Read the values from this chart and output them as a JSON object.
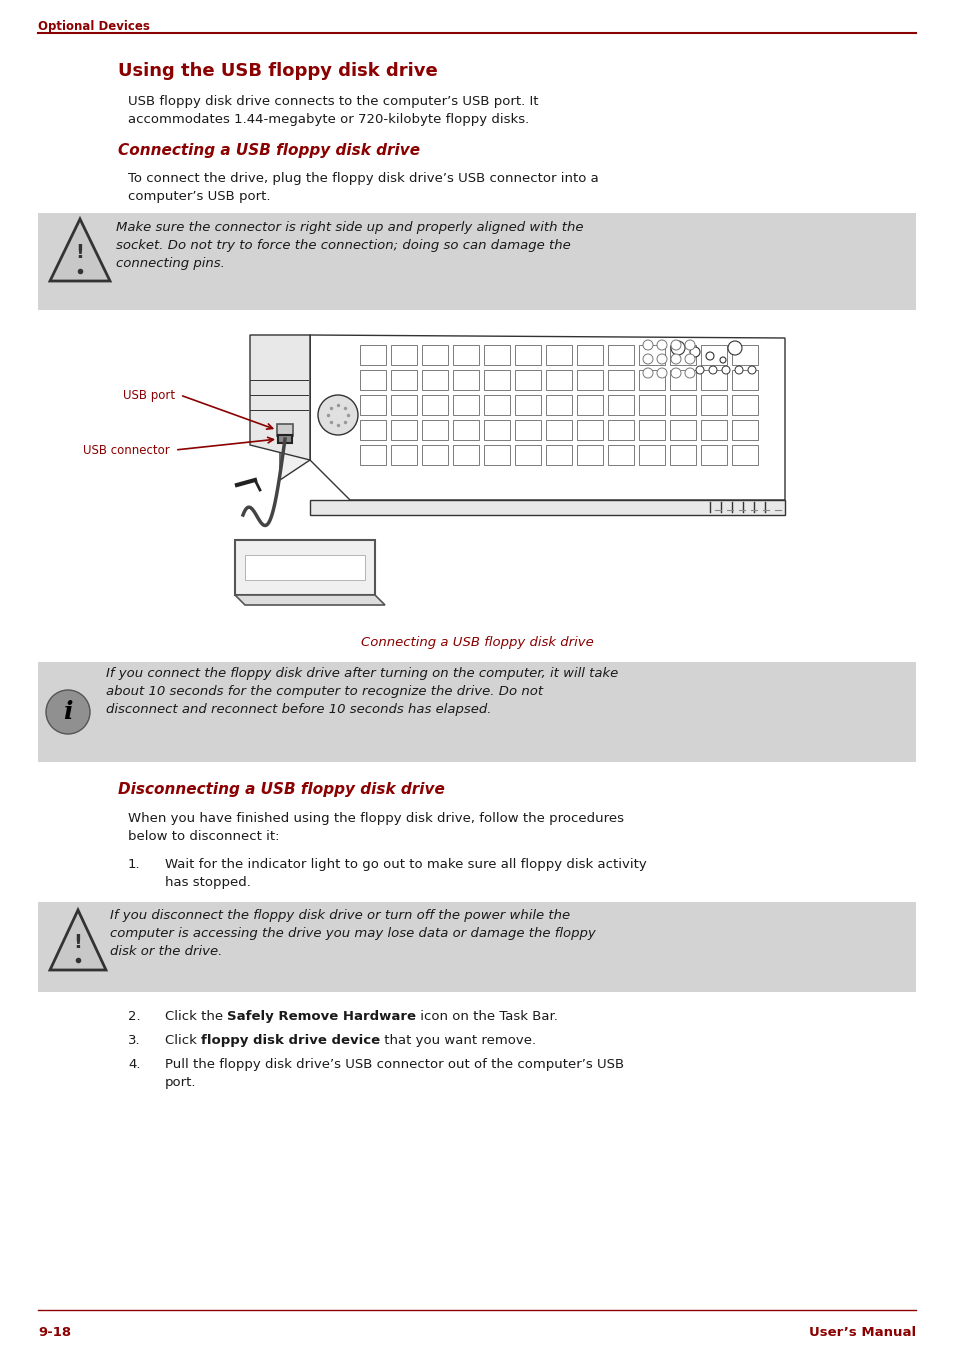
{
  "bg_color": "#ffffff",
  "dark_red": "#8B0000",
  "black": "#1a1a1a",
  "gray_bg": "#d3d3d3",
  "header_text": "Optional Devices",
  "main_title": "Using the USB floppy disk drive",
  "section1_title": "Connecting a USB floppy disk drive",
  "intro_l1": "USB floppy disk drive connects to the computer’s USB port. It",
  "intro_l2": "accommodates 1.44-megabyte or 720-kilobyte floppy disks.",
  "s1_body_l1": "To connect the drive, plug the floppy disk drive’s USB connector into a",
  "s1_body_l2": "computer’s USB port.",
  "caution1_l1": "Make sure the connector is right side up and properly aligned with the",
  "caution1_l2": "socket. Do not try to force the connection; doing so can damage the",
  "caution1_l3": "connecting pins.",
  "img_caption": "Connecting a USB floppy disk drive",
  "info_l1": "If you connect the floppy disk drive after turning on the computer, it will take",
  "info_l2": "about 10 seconds for the computer to recognize the drive. Do not",
  "info_l3": "disconnect and reconnect before 10 seconds has elapsed.",
  "section2_title": "Disconnecting a USB floppy disk drive",
  "s2_body_l1": "When you have finished using the floppy disk drive, follow the procedures",
  "s2_body_l2": "below to disconnect it:",
  "step1_l1": "Wait for the indicator light to go out to make sure all floppy disk activity",
  "step1_l2": "has stopped.",
  "caution2_l1": "If you disconnect the floppy disk drive or turn off the power while the",
  "caution2_l2": "computer is accessing the drive you may lose data or damage the floppy",
  "caution2_l3": "disk or the drive.",
  "step2_pre": "Click the ",
  "step2_bold": "Safely Remove Hardware",
  "step2_post": " icon on the Task Bar.",
  "step3_pre": "Click ",
  "step3_bold": "floppy disk drive device",
  "step3_post": " that you want remove.",
  "step4_l1": "Pull the floppy disk drive’s USB connector out of the computer’s USB",
  "step4_l2": "port.",
  "label_usb_port": "USB port",
  "label_usb_connector": "USB connector",
  "footer_left": "9-18",
  "footer_right": "User’s Manual",
  "ML": 38,
  "MR": 916,
  "CL": 128,
  "TI": 165,
  "PW": 954,
  "PH": 1352
}
